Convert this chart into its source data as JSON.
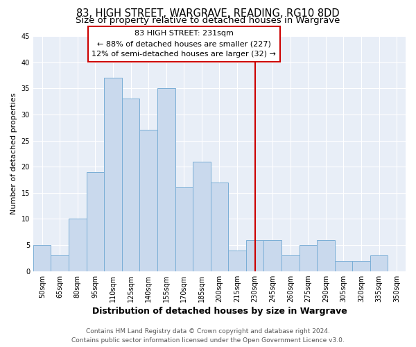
{
  "title": "83, HIGH STREET, WARGRAVE, READING, RG10 8DD",
  "subtitle": "Size of property relative to detached houses in Wargrave",
  "xlabel": "Distribution of detached houses by size in Wargrave",
  "ylabel": "Number of detached properties",
  "bin_labels": [
    "50sqm",
    "65sqm",
    "80sqm",
    "95sqm",
    "110sqm",
    "125sqm",
    "140sqm",
    "155sqm",
    "170sqm",
    "185sqm",
    "200sqm",
    "215sqm",
    "230sqm",
    "245sqm",
    "260sqm",
    "275sqm",
    "290sqm",
    "305sqm",
    "320sqm",
    "335sqm",
    "350sqm"
  ],
  "bar_values": [
    5,
    3,
    10,
    19,
    37,
    33,
    27,
    35,
    16,
    21,
    17,
    4,
    6,
    6,
    3,
    5,
    6,
    2,
    2,
    3,
    0
  ],
  "bar_color": "#c9d9ed",
  "bar_edge_color": "#7aaed6",
  "vline_x": 12,
  "vline_color": "#cc0000",
  "annotation_title": "83 HIGH STREET: 231sqm",
  "annotation_line1": "← 88% of detached houses are smaller (227)",
  "annotation_line2": "12% of semi-detached houses are larger (32) →",
  "annotation_box_color": "#ffffff",
  "annotation_box_edge": "#cc0000",
  "plot_bg_color": "#e8eef7",
  "grid_color": "#ffffff",
  "ylim": [
    0,
    45
  ],
  "yticks": [
    0,
    5,
    10,
    15,
    20,
    25,
    30,
    35,
    40,
    45
  ],
  "footer_line1": "Contains HM Land Registry data © Crown copyright and database right 2024.",
  "footer_line2": "Contains public sector information licensed under the Open Government Licence v3.0.",
  "title_fontsize": 10.5,
  "subtitle_fontsize": 9.5,
  "xlabel_fontsize": 9,
  "ylabel_fontsize": 8,
  "tick_fontsize": 7,
  "footer_fontsize": 6.5,
  "annotation_fontsize": 8
}
